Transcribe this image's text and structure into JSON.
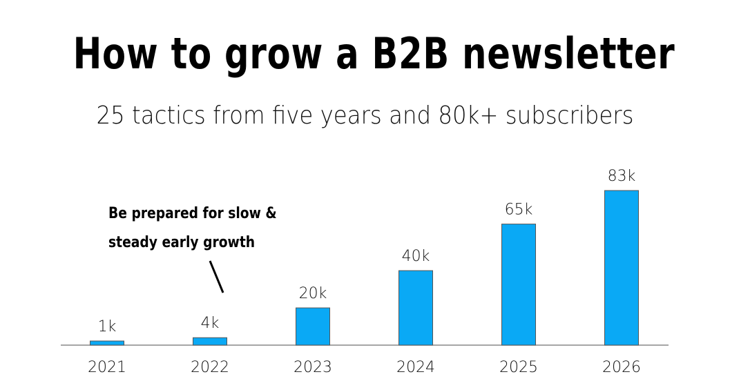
{
  "title": "How to grow a B2B newsletter",
  "subtitle": "25 tactics from five years and 80k+ subscribers",
  "chart_data": {
    "type": "bar",
    "categories": [
      "2021",
      "2022",
      "2023",
      "2024",
      "2025",
      "2026"
    ],
    "values": [
      1,
      4,
      20,
      40,
      65,
      83
    ],
    "data_labels": [
      "1k",
      "4k",
      "20k",
      "40k",
      "65k",
      "83k"
    ],
    "unit": "k",
    "ylim": [
      0,
      83
    ],
    "grid": false,
    "bar_color": "#0aa9f5",
    "annotation": {
      "text_line1": "Be prepared for slow &",
      "text_line2": "steady early growth",
      "points_to": "2022"
    }
  }
}
